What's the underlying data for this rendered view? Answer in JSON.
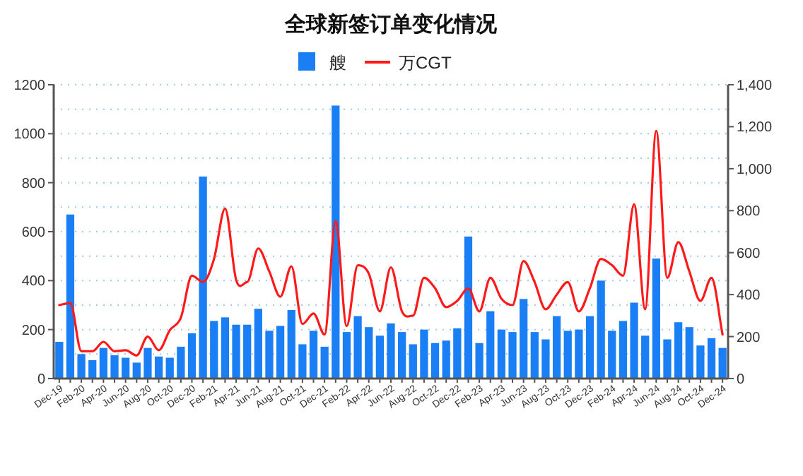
{
  "chart_data": {
    "type": "bar",
    "title": "全球新签订单变化情况",
    "categories": [
      "Dec-19",
      null,
      "Feb-20",
      null,
      "Apr-20",
      null,
      "Jun-20",
      null,
      "Aug-20",
      null,
      "Oct-20",
      null,
      "Dec-20",
      null,
      "Feb-21",
      null,
      "Apr-21",
      null,
      "Jun-21",
      null,
      "Aug-21",
      null,
      "Oct-21",
      null,
      "Dec-21",
      null,
      "Feb-22",
      null,
      "Apr-22",
      null,
      "Jun-22",
      null,
      "Aug-22",
      null,
      "Oct-22",
      null,
      "Dec-22",
      null,
      "Feb-23",
      null,
      "Apr-23",
      null,
      "Jun-23",
      null,
      "Aug-23",
      null,
      "Oct-23",
      null,
      "Dec-23",
      null,
      "Feb-24",
      null,
      "Apr-24",
      null,
      "Jun-24",
      null,
      "Aug-24",
      null,
      "Oct-24",
      null,
      "Dec-24"
    ],
    "series": [
      {
        "name": "艘",
        "type": "bar",
        "color": "#1a7ff5",
        "values": [
          150,
          670,
          100,
          75,
          125,
          95,
          85,
          65,
          125,
          90,
          85,
          130,
          185,
          825,
          235,
          250,
          220,
          220,
          285,
          195,
          215,
          280,
          140,
          195,
          130,
          1115,
          190,
          255,
          210,
          175,
          225,
          190,
          140,
          200,
          145,
          155,
          205,
          580,
          145,
          275,
          200,
          190,
          325,
          190,
          160,
          255,
          195,
          200,
          255,
          400,
          195,
          235,
          310,
          175,
          490,
          160,
          230,
          210,
          135,
          165,
          125
        ]
      },
      {
        "name": "万CGT",
        "type": "line",
        "axis": "y2",
        "color": "#ff1a1a",
        "values": [
          350,
          360,
          130,
          130,
          175,
          130,
          135,
          110,
          200,
          135,
          230,
          290,
          490,
          460,
          570,
          810,
          470,
          460,
          620,
          510,
          390,
          535,
          260,
          310,
          210,
          750,
          250,
          540,
          500,
          320,
          530,
          320,
          300,
          480,
          430,
          340,
          370,
          430,
          320,
          480,
          380,
          350,
          560,
          460,
          330,
          400,
          460,
          320,
          430,
          570,
          540,
          490,
          830,
          330,
          1180,
          480,
          650,
          510,
          370,
          480,
          210
        ]
      }
    ],
    "ylim": [
      0,
      1200
    ],
    "yticks": [
      0,
      {
        "value": 100,
        "label": null
      },
      200,
      {
        "value": 300,
        "label": null
      },
      400,
      {
        "value": 500,
        "label": null
      },
      600,
      {
        "value": 700,
        "label": null
      },
      800,
      {
        "value": 900,
        "label": null
      },
      1000,
      {
        "value": 1100,
        "label": null
      },
      1200
    ],
    "y2lim": [
      0,
      1400
    ],
    "y2ticks": [
      0,
      200,
      400,
      600,
      800,
      {
        "value": 1000,
        "label": "1,000"
      },
      {
        "value": 1200,
        "label": "1,200"
      },
      {
        "value": 1400,
        "label": "1,400"
      }
    ],
    "grid": "y",
    "legend": "top"
  }
}
